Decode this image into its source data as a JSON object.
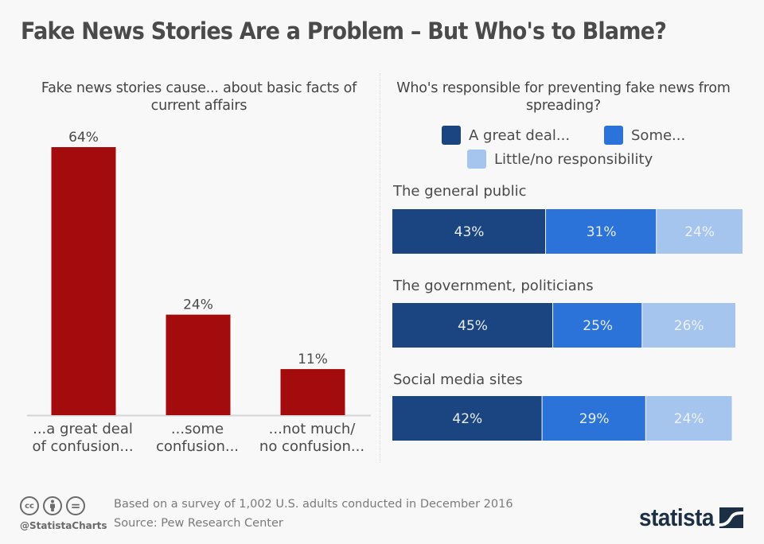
{
  "title": "Fake News Stories Are a Problem – But Who's to Blame?",
  "colors": {
    "left_bar": "#a30b0d",
    "great_deal": "#1a4580",
    "some": "#2b73d9",
    "little": "#a5c5ef",
    "axis": "#d4d4d4",
    "text": "#4a4a4a",
    "brand": "#1b2f45"
  },
  "chart_data": [
    {
      "type": "bar",
      "title": "Fake news stories cause... about basic facts of current affairs",
      "categories": [
        "...a great deal of confusion...",
        "...some confusion...",
        "...not much/ no confusion..."
      ],
      "category_lines": [
        [
          "...a great deal",
          "of confusion..."
        ],
        [
          "...some",
          "confusion..."
        ],
        [
          "...not much/",
          "no confusion..."
        ]
      ],
      "values": [
        64,
        24,
        11
      ],
      "data_labels": [
        "64%",
        "24%",
        "11%"
      ],
      "xlabel": "",
      "ylabel": "",
      "ylim": [
        0,
        64
      ],
      "grid": false,
      "legend": "none",
      "unit": "%"
    },
    {
      "type": "bar",
      "orientation": "horizontal-stacked",
      "title": "Who's responsible for preventing fake news from spreading?",
      "categories": [
        "The general public",
        "The government, politicians",
        "Social media sites"
      ],
      "series": [
        {
          "name": "A great deal...",
          "values": [
            43,
            45,
            42
          ],
          "labels": [
            "43%",
            "45%",
            "42%"
          ]
        },
        {
          "name": "Some...",
          "values": [
            31,
            25,
            29
          ],
          "labels": [
            "31%",
            "25%",
            "29%"
          ]
        },
        {
          "name": "Little/no responsibility",
          "values": [
            24,
            26,
            24
          ],
          "labels": [
            "24%",
            "26%",
            "24%"
          ]
        }
      ],
      "xlim": [
        0,
        100
      ],
      "grid": false,
      "legend": "top",
      "unit": "%"
    }
  ],
  "footer": {
    "note": "Based on a survey of 1,002 U.S. adults conducted in December 2016",
    "source": "Source: Pew Research Center",
    "handle": "@StatistaCharts",
    "cc_icons": [
      "cc-icon",
      "attribution-icon",
      "no-derivatives-icon"
    ],
    "cc_glyphs": [
      "cc",
      "",
      "="
    ],
    "brand": "statista"
  }
}
